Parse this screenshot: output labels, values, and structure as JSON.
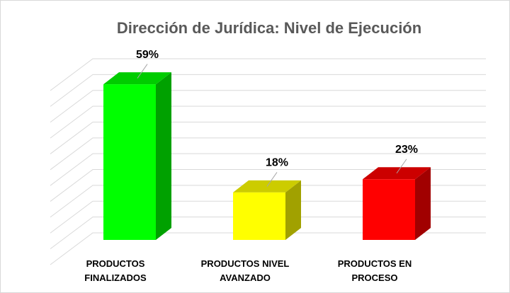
{
  "chart_data": {
    "type": "bar3d",
    "title": "Dirección de Jurídica: Nivel de Ejecución",
    "categories": [
      "PRODUCTOS FINALIZADOS",
      "PRODUCTOS NIVEL AVANZADO",
      "PRODUCTOS EN PROCESO"
    ],
    "values": [
      59,
      18,
      23
    ],
    "value_labels": [
      "59%",
      "18%",
      "23%"
    ],
    "colors": [
      "#00ff00",
      "#ffff00",
      "#ff0000"
    ],
    "ylim": [
      0,
      66
    ],
    "yticks": [
      0,
      6,
      12,
      18,
      24,
      30,
      36,
      42,
      48,
      54,
      60,
      66
    ],
    "grid": true
  }
}
